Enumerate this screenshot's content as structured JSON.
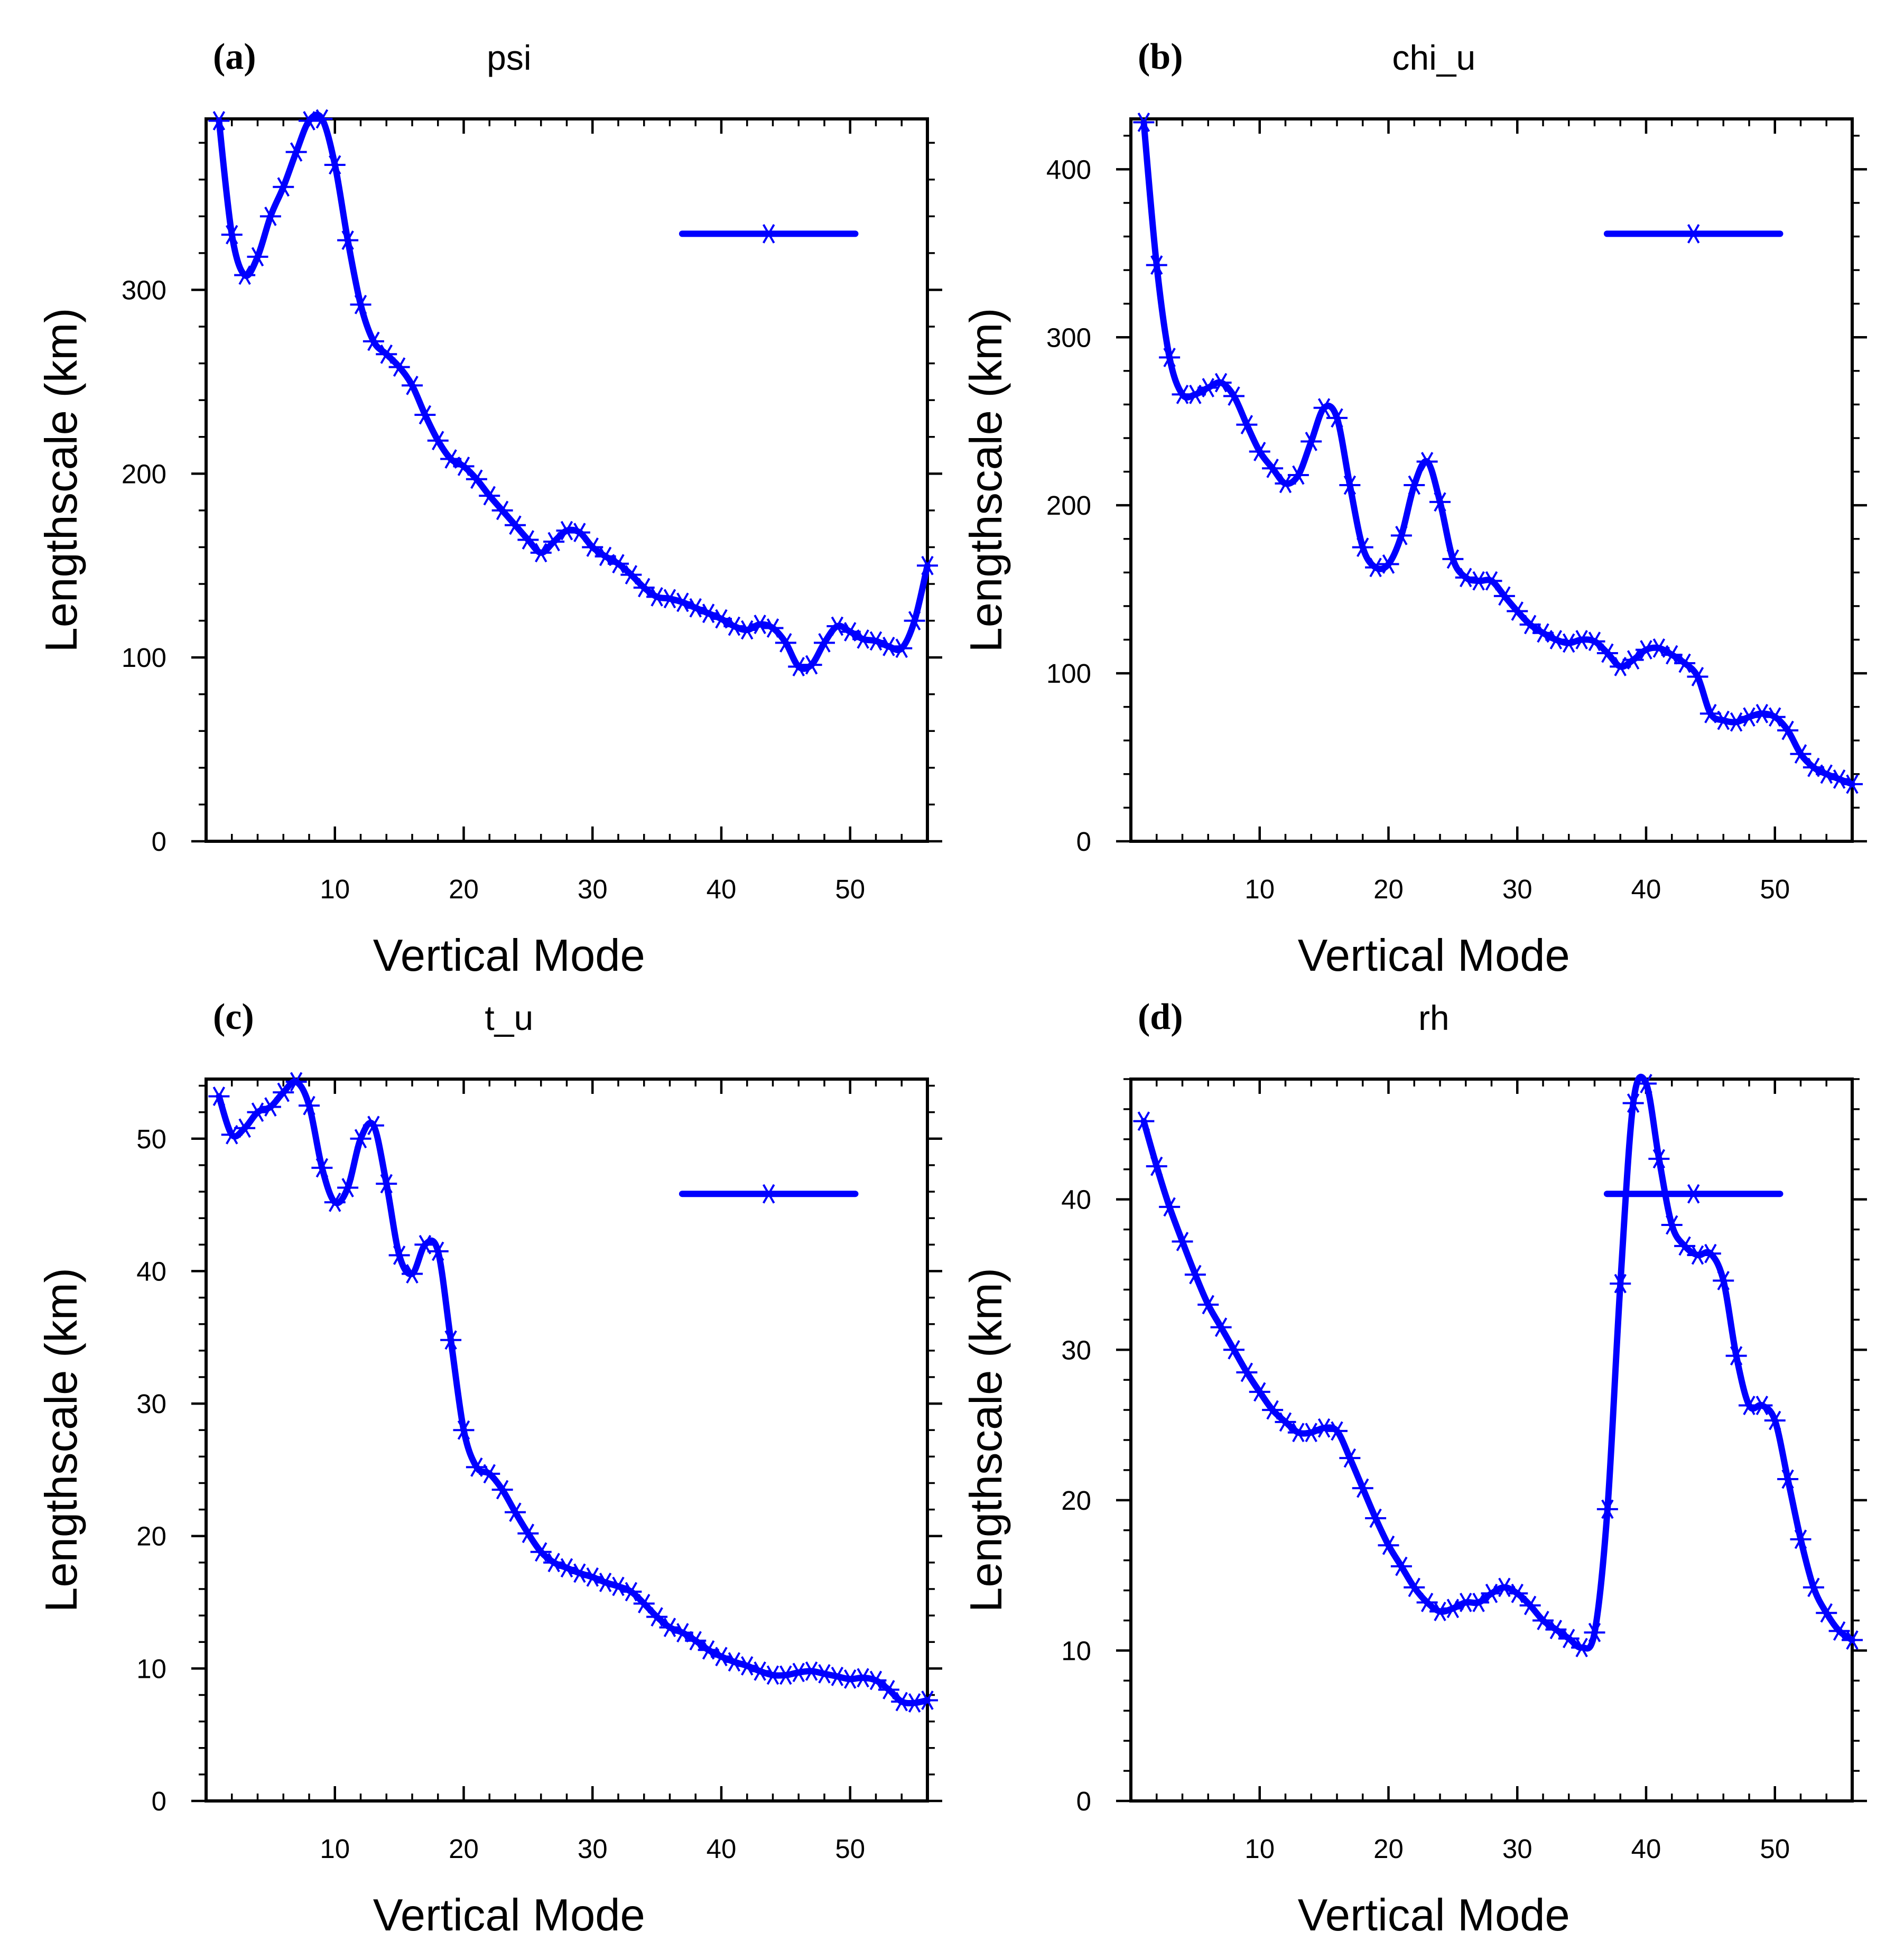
{
  "chart_data": [
    {
      "type": "line",
      "label": "(a)",
      "title": "psi",
      "xlabel": "Vertical Mode",
      "ylabel": "Lengthscale (km)",
      "xlim": [
        0,
        56
      ],
      "ylim": [
        0,
        393
      ],
      "xticks": [
        10,
        20,
        30,
        40,
        50
      ],
      "yticks": [
        0,
        100,
        200,
        300
      ],
      "legend": "top-right",
      "series": [
        {
          "name": "psi",
          "color": "#0000ff",
          "x": [
            1,
            2,
            3,
            4,
            5,
            6,
            7,
            8,
            9,
            10,
            11,
            12,
            13,
            14,
            15,
            16,
            17,
            18,
            19,
            20,
            21,
            22,
            23,
            24,
            25,
            26,
            27,
            28,
            29,
            30,
            31,
            32,
            33,
            34,
            35,
            36,
            37,
            38,
            39,
            40,
            41,
            42,
            43,
            44,
            45,
            46,
            47,
            48,
            49,
            50,
            51,
            52,
            53,
            54,
            55,
            56
          ],
          "values": [
            392,
            330,
            308,
            318,
            340,
            356,
            375,
            392,
            393,
            368,
            327,
            292,
            272,
            265,
            258,
            248,
            232,
            218,
            208,
            204,
            197,
            188,
            180,
            172,
            164,
            157,
            163,
            169,
            168,
            160,
            155,
            151,
            145,
            138,
            133,
            132,
            130,
            127,
            124,
            121,
            117,
            115,
            118,
            116,
            108,
            95,
            96,
            108,
            117,
            114,
            110,
            109,
            106,
            105,
            120,
            150
          ]
        }
      ]
    },
    {
      "type": "line",
      "label": "(b)",
      "title": "chi_u",
      "xlabel": "Vertical Mode",
      "ylabel": "Lengthscale (km)",
      "xlim": [
        0,
        56
      ],
      "ylim": [
        0,
        430
      ],
      "xticks": [
        10,
        20,
        30,
        40,
        50
      ],
      "yticks": [
        0,
        100,
        200,
        300,
        400
      ],
      "legend": "top-right",
      "series": [
        {
          "name": "chi_u",
          "color": "#0000ff",
          "x": [
            1,
            2,
            3,
            4,
            5,
            6,
            7,
            8,
            9,
            10,
            11,
            12,
            13,
            14,
            15,
            16,
            17,
            18,
            19,
            20,
            21,
            22,
            23,
            24,
            25,
            26,
            27,
            28,
            29,
            30,
            31,
            32,
            33,
            34,
            35,
            36,
            37,
            38,
            39,
            40,
            41,
            42,
            43,
            44,
            45,
            46,
            47,
            48,
            49,
            50,
            51,
            52,
            53,
            54,
            55,
            56
          ],
          "values": [
            428,
            343,
            288,
            266,
            266,
            270,
            273,
            265,
            248,
            232,
            222,
            213,
            218,
            238,
            258,
            252,
            212,
            175,
            163,
            165,
            182,
            212,
            226,
            202,
            168,
            157,
            155,
            155,
            146,
            137,
            129,
            124,
            120,
            118,
            120,
            119,
            112,
            104,
            108,
            114,
            115,
            111,
            106,
            98,
            76,
            72,
            71,
            74,
            76,
            74,
            66,
            52,
            44,
            40,
            37,
            34
          ]
        }
      ]
    },
    {
      "type": "line",
      "label": "(c)",
      "title": "t_u",
      "xlabel": "Vertical Mode",
      "ylabel": "Lengthscale (km)",
      "xlim": [
        0,
        56
      ],
      "ylim": [
        0,
        54.5
      ],
      "xticks": [
        10,
        20,
        30,
        40,
        50
      ],
      "yticks": [
        0,
        10,
        20,
        30,
        40,
        50
      ],
      "legend": "top-right",
      "series": [
        {
          "name": "t_u",
          "color": "#0000ff",
          "x": [
            1,
            2,
            3,
            4,
            5,
            6,
            7,
            8,
            9,
            10,
            11,
            12,
            13,
            14,
            15,
            16,
            17,
            18,
            19,
            20,
            21,
            22,
            23,
            24,
            25,
            26,
            27,
            28,
            29,
            30,
            31,
            32,
            33,
            34,
            35,
            36,
            37,
            38,
            39,
            40,
            41,
            42,
            43,
            44,
            45,
            46,
            47,
            48,
            49,
            50,
            51,
            52,
            53,
            54,
            55,
            56
          ],
          "values": [
            53.2,
            50.3,
            50.8,
            52,
            52.4,
            53.5,
            54.3,
            52.5,
            47.8,
            45.2,
            46.3,
            50,
            51,
            46.6,
            41.2,
            39.8,
            42,
            41.5,
            34.8,
            28,
            25.2,
            24.7,
            23.5,
            21.8,
            20.2,
            18.8,
            18,
            17.6,
            17.2,
            16.9,
            16.5,
            16.2,
            15.8,
            14.9,
            13.9,
            13.1,
            12.7,
            12.1,
            11.4,
            10.9,
            10.5,
            10.2,
            9.8,
            9.5,
            9.5,
            9.7,
            9.8,
            9.6,
            9.4,
            9.2,
            9.3,
            9.1,
            8.4,
            7.5,
            7.4,
            7.6
          ]
        }
      ]
    },
    {
      "type": "line",
      "label": "(d)",
      "title": "rh",
      "xlabel": "Vertical Mode",
      "ylabel": "Lengthscale (km)",
      "xlim": [
        0,
        56
      ],
      "ylim": [
        0,
        48
      ],
      "xticks": [
        10,
        20,
        30,
        40,
        50
      ],
      "yticks": [
        0,
        10,
        20,
        30,
        40
      ],
      "legend": "top-right",
      "series": [
        {
          "name": "rh",
          "color": "#0000ff",
          "x": [
            1,
            2,
            3,
            4,
            5,
            6,
            7,
            8,
            9,
            10,
            11,
            12,
            13,
            14,
            15,
            16,
            17,
            18,
            19,
            20,
            21,
            22,
            23,
            24,
            25,
            26,
            27,
            28,
            29,
            30,
            31,
            32,
            33,
            34,
            35,
            36,
            37,
            38,
            39,
            40,
            41,
            42,
            43,
            44,
            45,
            46,
            47,
            48,
            49,
            50,
            51,
            52,
            53,
            54,
            55,
            56
          ],
          "values": [
            45.2,
            42.2,
            39.5,
            37.2,
            35,
            33,
            31.5,
            30,
            28.5,
            27.2,
            26,
            25.2,
            24.5,
            24.5,
            24.8,
            24.6,
            22.8,
            20.8,
            18.8,
            17,
            15.6,
            14.2,
            13.2,
            12.6,
            12.8,
            13.2,
            13.2,
            13.8,
            14.2,
            13.8,
            13,
            12,
            11.4,
            10.8,
            10.2,
            11.2,
            19.4,
            34.4,
            46.4,
            47.7,
            42.7,
            38.3,
            36.9,
            36.3,
            36.4,
            34.6,
            29.6,
            26.3,
            26.3,
            25.3,
            21.4,
            17.4,
            14.2,
            12.5,
            11.3,
            10.7
          ]
        }
      ]
    }
  ]
}
